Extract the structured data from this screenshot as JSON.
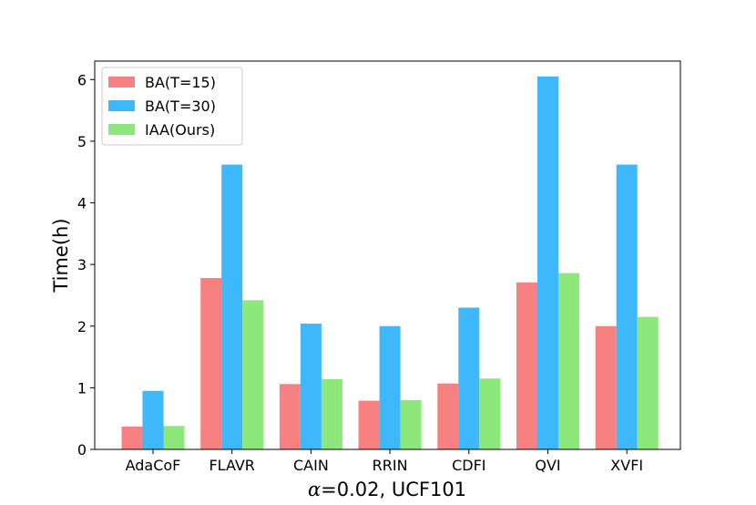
{
  "chart_data": {
    "type": "bar",
    "title": "",
    "categories": [
      "AdaCoF",
      "FLAVR",
      "CAIN",
      "RRIN",
      "CDFI",
      "QVI",
      "XVFI"
    ],
    "series": [
      {
        "name": "BA(T=15)",
        "color": "#f78080",
        "values": [
          0.37,
          2.78,
          1.06,
          0.79,
          1.07,
          2.71,
          2.0
        ]
      },
      {
        "name": "BA(T=30)",
        "color": "#3db8fa",
        "values": [
          0.95,
          4.62,
          2.04,
          2.0,
          2.3,
          6.05,
          4.62
        ]
      },
      {
        "name": "IAA(Ours)",
        "color": "#8ce87a",
        "values": [
          0.38,
          2.42,
          1.14,
          0.8,
          1.15,
          2.86,
          2.15
        ]
      }
    ],
    "xlabel_symbol": "α",
    "xlabel_rest": "=0.02, UCF101",
    "ylabel": "Time(h)",
    "ylim": [
      0,
      6.3
    ],
    "yticks": [
      0,
      1,
      2,
      3,
      4,
      5,
      6
    ],
    "legend_position": "upper-left",
    "grid": false
  }
}
